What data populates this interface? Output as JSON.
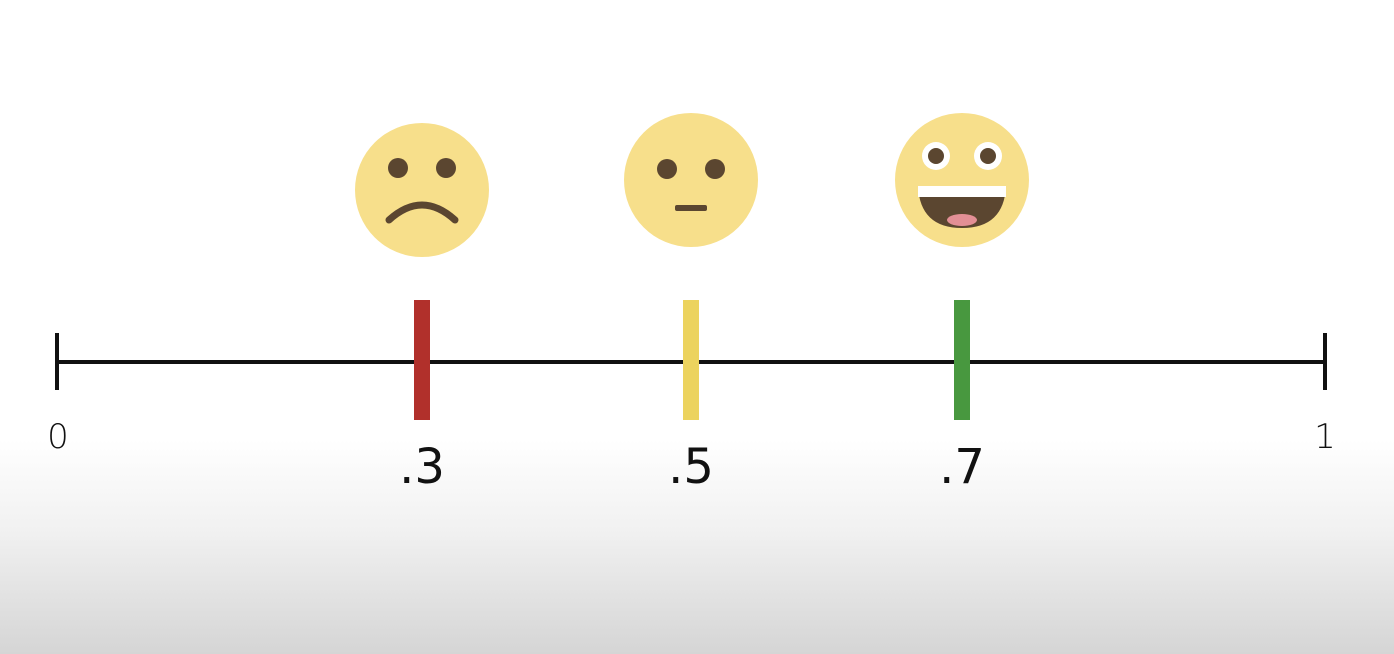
{
  "scale": {
    "min_label": "0",
    "max_label": "1",
    "min_value": 0,
    "max_value": 1,
    "line_color": "#111111"
  },
  "markers": [
    {
      "value": 0.3,
      "label": ".3",
      "color": "#b1302b",
      "face": "sad-face-icon"
    },
    {
      "value": 0.5,
      "label": ".5",
      "color": "#ecd35e",
      "face": "neutral-face-icon"
    },
    {
      "value": 0.7,
      "label": ".7",
      "color": "#48983f",
      "face": "grinning-face-icon"
    }
  ],
  "palette": {
    "face_fill": "#f7df8b",
    "feature": "#5b4630",
    "tongue": "#e38f95"
  }
}
